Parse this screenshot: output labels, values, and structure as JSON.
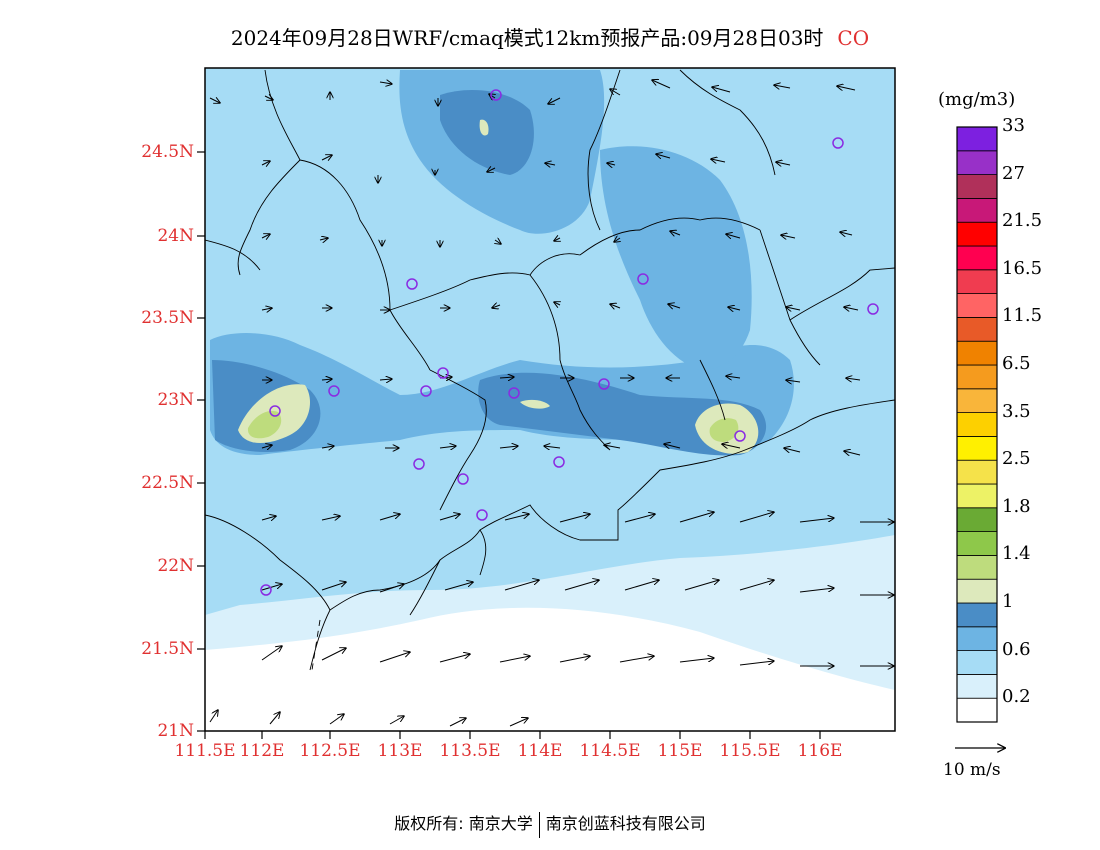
{
  "title": {
    "main": "2024年09月28日WRF/cmaq模式12km预报产品:09月28日03时",
    "species": "CO"
  },
  "map": {
    "lat_labels": [
      "24.5N",
      "24N",
      "23.5N",
      "23N",
      "22.5N",
      "22N",
      "21.5N",
      "21N"
    ],
    "lon_labels": [
      "111.5E",
      "112E",
      "112.5E",
      "113E",
      "113.5E",
      "114E",
      "114.5E",
      "115E",
      "115.5E",
      "116E"
    ],
    "shading_colors": {
      "lt02": "#ffffff",
      "c02": "#d9f0fb",
      "c06": "#a6dcf5",
      "c08": "#6db4e3",
      "c10": "#4a8dc6",
      "c14": "#dde9bc",
      "c18": "#bedc7d"
    },
    "station_marker_color": "#8a2be2",
    "wind_vector_color": "#000000"
  },
  "colorbar": {
    "unit": "(mg/m3)",
    "colors": [
      "#ffffff",
      "#d9f0fb",
      "#a6dcf5",
      "#6db4e3",
      "#4a8dc6",
      "#dde9bc",
      "#bedc7d",
      "#8ec84a",
      "#6aaa34",
      "#edf266",
      "#f5e24a",
      "#fff000",
      "#fdd000",
      "#f9b53a",
      "#f59b1e",
      "#f08200",
      "#e85a28",
      "#ff6464",
      "#f03c50",
      "#ff0050",
      "#ff0000",
      "#c81878",
      "#b0305a",
      "#9830c8",
      "#7d20e0"
    ],
    "labels": [
      "0.2",
      "0.6",
      "1",
      "1.4",
      "1.8",
      "2.5",
      "3.5",
      "6.5",
      "11.5",
      "16.5",
      "21.5",
      "27",
      "33"
    ]
  },
  "reference_vector": {
    "label": "10 m/s"
  },
  "footer": {
    "copyright_left": "版权所有: 南京大学",
    "copyright_right": "南京创蓝科技有限公司"
  }
}
